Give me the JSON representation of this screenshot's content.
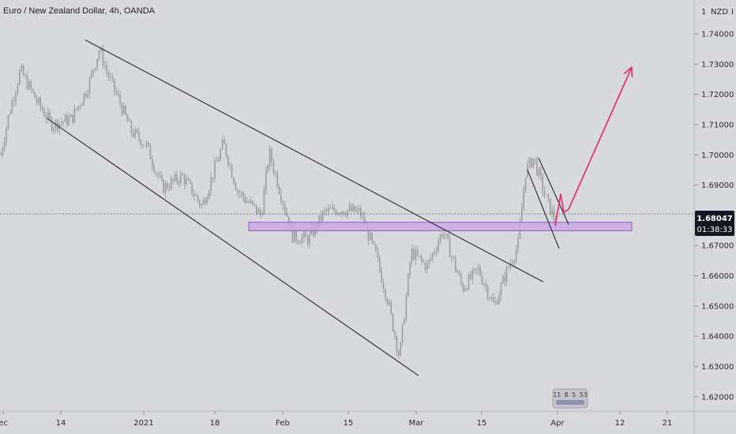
{
  "header": {
    "title": "Euro / New Zealand Dollar, 4h, OANDA",
    "currency_label": "NZD"
  },
  "price_badge": {
    "price": "1.68047",
    "countdown": "01:38:33",
    "color": "#131722"
  },
  "watermark": {
    "text": "11 8 5 53"
  },
  "colors": {
    "background": "#d8d9dd",
    "candles": "#9a9ca2",
    "trendlines": "#26272b",
    "zone_fill": "#c9a8e6",
    "zone_border": "#9b59b6",
    "arrow": "#e0357a"
  },
  "chart_data": {
    "type": "candlestick",
    "title": "Euro / New Zealand Dollar, 4h, OANDA",
    "y_axis": {
      "range": [
        1.615,
        1.746
      ],
      "ticks": [
        "1.74000",
        "1.73000",
        "1.72000",
        "1.71000",
        "1.70000",
        "1.69000",
        "1.67000",
        "1.66000",
        "1.65000",
        "1.64000",
        "1.63000",
        "1.62000"
      ]
    },
    "x_axis": {
      "ticks": [
        "ec",
        "14",
        "2021",
        "18",
        "Feb",
        "15",
        "Mar",
        "15",
        "Apr",
        "12",
        "21"
      ]
    },
    "price_path": [
      {
        "t": 0,
        "p": 1.7
      },
      {
        "t": 10,
        "p": 1.713
      },
      {
        "t": 25,
        "p": 1.728
      },
      {
        "t": 45,
        "p": 1.718
      },
      {
        "t": 65,
        "p": 1.71
      },
      {
        "t": 90,
        "p": 1.712
      },
      {
        "t": 110,
        "p": 1.722
      },
      {
        "t": 125,
        "p": 1.735
      },
      {
        "t": 135,
        "p": 1.727
      },
      {
        "t": 150,
        "p": 1.718
      },
      {
        "t": 165,
        "p": 1.708
      },
      {
        "t": 185,
        "p": 1.703
      },
      {
        "t": 205,
        "p": 1.689
      },
      {
        "t": 230,
        "p": 1.693
      },
      {
        "t": 255,
        "p": 1.683
      },
      {
        "t": 282,
        "p": 1.704
      },
      {
        "t": 300,
        "p": 1.688
      },
      {
        "t": 330,
        "p": 1.68
      },
      {
        "t": 340,
        "p": 1.701
      },
      {
        "t": 355,
        "p": 1.687
      },
      {
        "t": 370,
        "p": 1.673
      },
      {
        "t": 390,
        "p": 1.672
      },
      {
        "t": 410,
        "p": 1.681
      },
      {
        "t": 430,
        "p": 1.682
      },
      {
        "t": 455,
        "p": 1.681
      },
      {
        "t": 475,
        "p": 1.667
      },
      {
        "t": 490,
        "p": 1.652
      },
      {
        "t": 505,
        "p": 1.633
      },
      {
        "t": 520,
        "p": 1.668
      },
      {
        "t": 540,
        "p": 1.663
      },
      {
        "t": 560,
        "p": 1.675
      },
      {
        "t": 585,
        "p": 1.656
      },
      {
        "t": 605,
        "p": 1.662
      },
      {
        "t": 625,
        "p": 1.65
      },
      {
        "t": 640,
        "p": 1.661
      },
      {
        "t": 655,
        "p": 1.67
      },
      {
        "t": 665,
        "p": 1.695
      },
      {
        "t": 675,
        "p": 1.699
      },
      {
        "t": 690,
        "p": 1.686
      },
      {
        "t": 704,
        "p": 1.677
      }
    ],
    "annotations": {
      "upper_channel_line": [
        {
          "t": 108,
          "p": 1.738
        },
        {
          "t": 688,
          "p": 1.658
        }
      ],
      "lower_channel_line": [
        {
          "t": 60,
          "p": 1.712
        },
        {
          "t": 530,
          "p": 1.627
        }
      ],
      "support_zone": {
        "t_start": 315,
        "t_end": 800,
        "p_low": 1.6749,
        "p_high": 1.6777
      },
      "wedge_upper_line": [
        {
          "t": 682,
          "p": 1.699
        },
        {
          "t": 720,
          "p": 1.677
        }
      ],
      "wedge_lower_line": [
        {
          "t": 668,
          "p": 1.695
        },
        {
          "t": 708,
          "p": 1.669
        }
      ],
      "projection_path": [
        {
          "t": 703,
          "p": 1.6765
        },
        {
          "t": 710,
          "p": 1.687
        },
        {
          "t": 714,
          "p": 1.681
        },
        {
          "t": 720,
          "p": 1.682
        },
        {
          "t": 800,
          "p": 1.729
        }
      ],
      "current_price_line": 1.6805
    }
  }
}
